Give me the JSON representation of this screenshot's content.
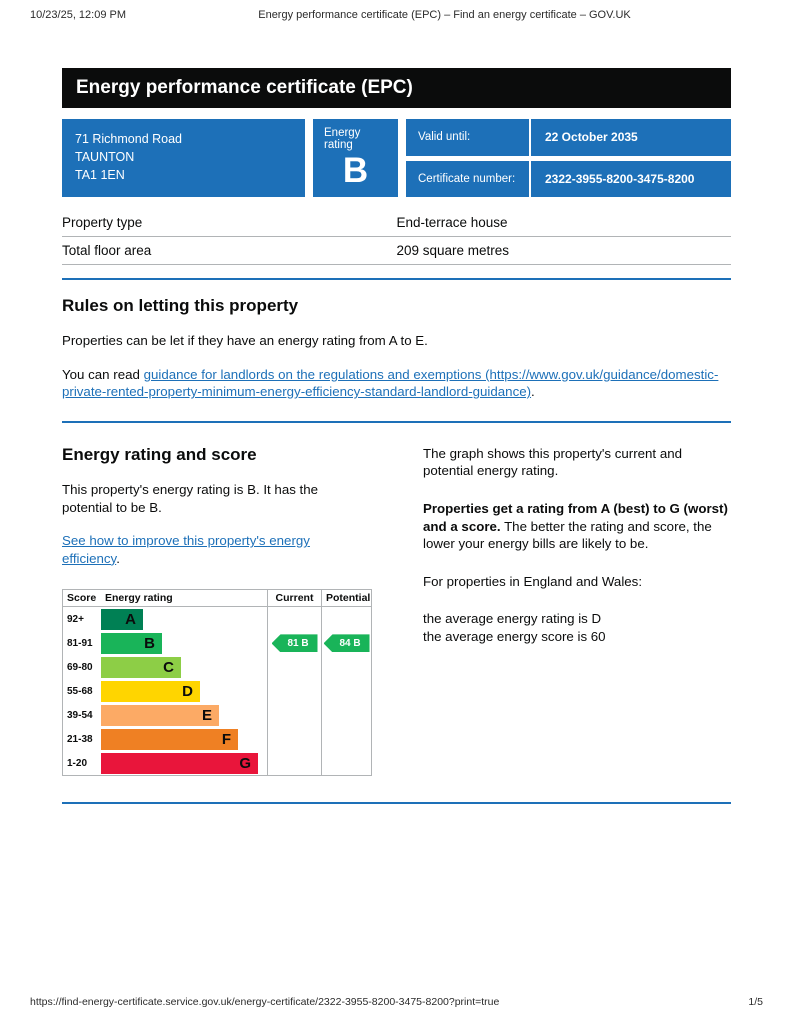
{
  "print_chrome": {
    "datetime": "10/23/25, 12:09 PM",
    "doc_title": "Energy performance certificate (EPC) – Find an energy certificate – GOV.UK",
    "url": "https://find-energy-certificate.service.gov.uk/energy-certificate/2322-3955-8200-3475-8200?print=true",
    "page_number": "1/5"
  },
  "colors": {
    "govuk_blue": "#1d70b8",
    "banner_black": "#0b0c0c",
    "border_gray": "#b1b4b6",
    "link_blue": "#1d70b8"
  },
  "banner": {
    "title": "Energy performance certificate (EPC)"
  },
  "summary": {
    "address_lines": [
      "71 Richmond Road",
      "TAUNTON",
      "TA1 1EN"
    ],
    "energy_rating_label": "Energy rating",
    "energy_rating_value": "B",
    "valid_until_label": "Valid until:",
    "valid_until_value": "22 October 2035",
    "certificate_number_label": "Certificate number:",
    "certificate_number_value": "2322-3955-8200-3475-8200"
  },
  "property_details": {
    "rows": [
      {
        "label": "Property type",
        "value": "End-terrace house"
      },
      {
        "label": "Total floor area",
        "value": "209 square metres"
      }
    ]
  },
  "rules_section": {
    "heading": "Rules on letting this property",
    "paragraph": "Properties can be let if they have an energy rating from A to E.",
    "link_prefix": "You can read ",
    "link_text": "guidance for landlords on the regulations and exemptions (https://www.gov.uk/guidance/domestic-private-rented-property-minimum-energy-efficiency-standard-landlord-guidance)",
    "link_suffix": "."
  },
  "energy_section": {
    "heading": "Energy rating and score",
    "intro": "This property's energy rating is B. It has the potential to be B.",
    "improve_link_text": "See how to improve this property's energy efficiency",
    "improve_link_suffix": ".",
    "graph_intro": "The graph shows this property's current and potential energy rating.",
    "explanation_bold": "Properties get a rating from A (best) to G (worst) and a score.",
    "explanation_rest": " The better the rating and score, the lower your energy bills are likely to be.",
    "region_note": "For properties in England and Wales:",
    "average_rating_line": "the average energy rating is D",
    "average_score_line": "the average energy score is 60"
  },
  "chart_data": {
    "type": "epc_rating_scale",
    "title": "Energy rating and score",
    "columns": [
      "Score",
      "Energy rating",
      "Current",
      "Potential"
    ],
    "bands": [
      {
        "score": "92+",
        "letter": "A",
        "color": "#008054"
      },
      {
        "score": "81-91",
        "letter": "B",
        "color": "#19b459"
      },
      {
        "score": "69-80",
        "letter": "C",
        "color": "#8dce46"
      },
      {
        "score": "55-68",
        "letter": "D",
        "color": "#ffd500"
      },
      {
        "score": "39-54",
        "letter": "E",
        "color": "#fcaa65"
      },
      {
        "score": "21-38",
        "letter": "F",
        "color": "#ef8023"
      },
      {
        "score": "1-20",
        "letter": "G",
        "color": "#e9153b"
      }
    ],
    "current": {
      "score": 81,
      "band": "B",
      "label": "81 B",
      "band_index": 1,
      "color": "#19b459"
    },
    "potential": {
      "score": 84,
      "band": "B",
      "label": "84 B",
      "band_index": 1,
      "color": "#19b459"
    }
  }
}
